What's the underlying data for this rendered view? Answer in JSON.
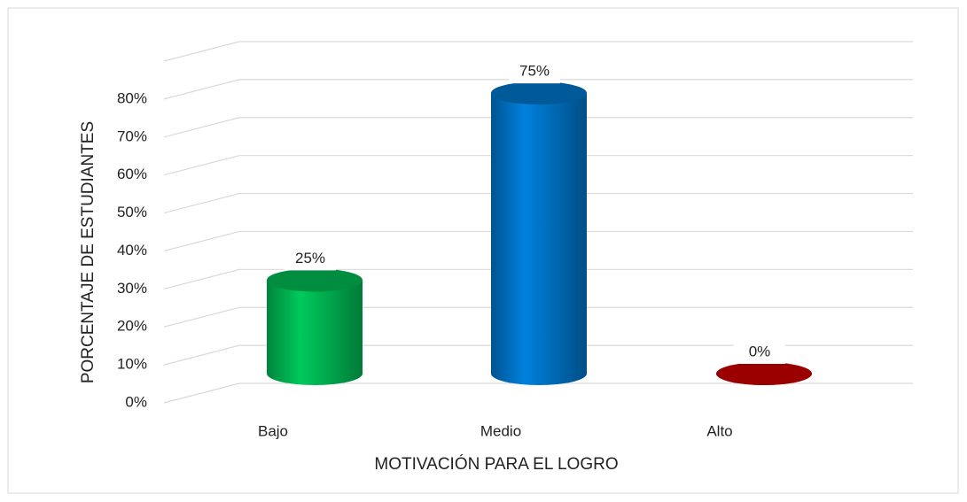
{
  "chart_data": {
    "type": "bar3d",
    "y_axis_label": "PORCENTAJE DE ESTUDIANTES",
    "x_axis_label": "MOTIVACIÓN PARA EL LOGRO",
    "categories": [
      "Bajo",
      "Medio",
      "Alto"
    ],
    "values": [
      25,
      75,
      0
    ],
    "value_labels": [
      "25%",
      "75%",
      "0%"
    ],
    "colors": [
      "#00b050",
      "#0070c0",
      "#c00000"
    ],
    "ylim": [
      0,
      90
    ],
    "yticks": [
      {
        "value": 0,
        "label": "0%"
      },
      {
        "value": 10,
        "label": "10%"
      },
      {
        "value": 20,
        "label": "20%"
      },
      {
        "value": 30,
        "label": "30%"
      },
      {
        "value": 40,
        "label": "40%"
      },
      {
        "value": 50,
        "label": "50%"
      },
      {
        "value": 60,
        "label": "60%"
      },
      {
        "value": 70,
        "label": "70%"
      },
      {
        "value": 80,
        "label": "80%"
      }
    ],
    "grid": true
  }
}
